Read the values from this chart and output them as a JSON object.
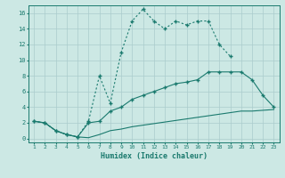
{
  "xlabel": "Humidex (Indice chaleur)",
  "x": [
    1,
    2,
    3,
    4,
    5,
    6,
    7,
    8,
    9,
    10,
    11,
    12,
    13,
    14,
    15,
    16,
    17,
    18,
    19,
    20,
    21,
    22,
    23
  ],
  "line1": [
    2.2,
    2.0,
    1.0,
    0.5,
    0.2,
    2.2,
    8.0,
    4.5,
    11.0,
    15.0,
    16.5,
    15.0,
    14.0,
    15.0,
    14.5,
    15.0,
    15.0,
    12.0,
    10.5,
    null,
    null,
    null,
    null
  ],
  "line2": [
    2.2,
    2.0,
    1.0,
    0.5,
    0.2,
    2.0,
    2.2,
    3.5,
    4.0,
    5.0,
    5.5,
    6.0,
    6.5,
    7.0,
    7.2,
    7.5,
    8.5,
    8.5,
    8.5,
    8.5,
    7.5,
    5.5,
    4.0
  ],
  "line3": [
    2.2,
    2.0,
    1.0,
    0.5,
    0.2,
    0.1,
    0.5,
    1.0,
    1.2,
    1.5,
    1.7,
    1.9,
    2.1,
    2.3,
    2.5,
    2.7,
    2.9,
    3.1,
    3.3,
    3.5,
    3.5,
    3.6,
    3.7
  ],
  "color": "#1a7a6e",
  "bg_color": "#cce8e4",
  "grid_color": "#aacccc",
  "ylim": [
    -0.5,
    17
  ],
  "xlim": [
    0.5,
    23.5
  ],
  "yticks": [
    0,
    2,
    4,
    6,
    8,
    10,
    12,
    14,
    16
  ],
  "xticks": [
    1,
    2,
    3,
    4,
    5,
    6,
    7,
    8,
    9,
    10,
    11,
    12,
    13,
    14,
    15,
    16,
    17,
    18,
    19,
    20,
    21,
    22,
    23
  ]
}
